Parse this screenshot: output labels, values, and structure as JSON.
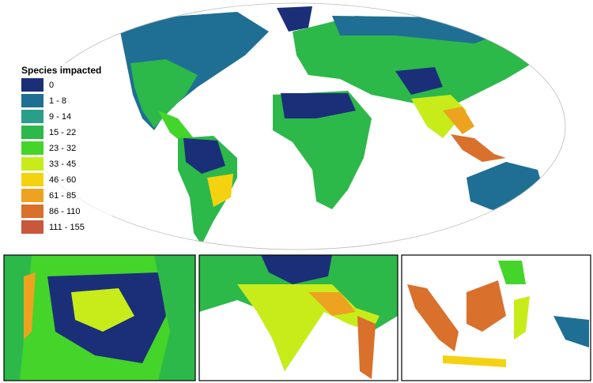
{
  "legend": {
    "title": "Species impacted",
    "items": [
      {
        "label": "0",
        "color": "#1b2f78"
      },
      {
        "label": "1 - 8",
        "color": "#1f6f94"
      },
      {
        "label": "9 - 14",
        "color": "#2a9e8a"
      },
      {
        "label": "15 - 22",
        "color": "#2db84a"
      },
      {
        "label": "23 - 32",
        "color": "#44d42a"
      },
      {
        "label": "33 - 45",
        "color": "#c8ec1a"
      },
      {
        "label": "46 - 60",
        "color": "#f5d20f"
      },
      {
        "label": "61 - 85",
        "color": "#eda320"
      },
      {
        "label": "86 - 110",
        "color": "#d9702b"
      },
      {
        "label": "111 - 155",
        "color": "#c9573b"
      }
    ]
  }
}
